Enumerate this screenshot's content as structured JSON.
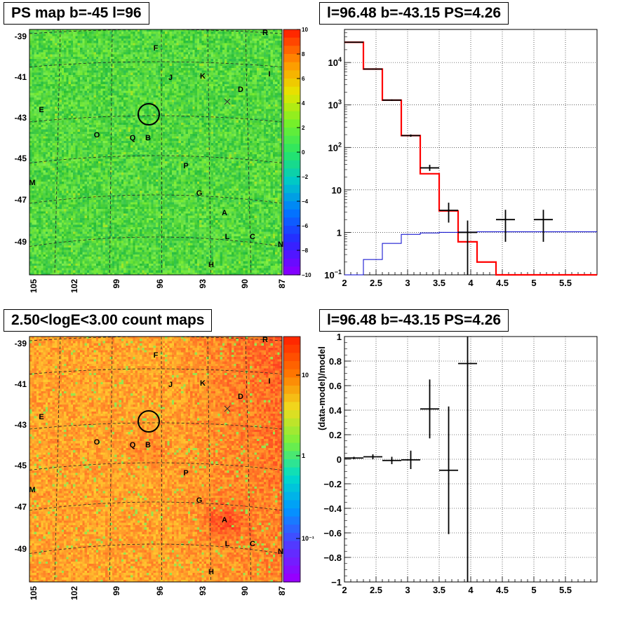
{
  "panels": [
    {
      "id": "ps-map",
      "title": "PS map b=-45 l=96",
      "colorscale": "green-ps",
      "colorbar": {
        "scale": "linear",
        "min": -10,
        "max": 10,
        "ticks": [
          "10",
          "8",
          "6",
          "4",
          "2",
          "0",
          "−2",
          "−4",
          "−6",
          "−8",
          "−10"
        ]
      },
      "yticks": [
        "-39",
        "-41",
        "-43",
        "-45",
        "-47",
        "-49"
      ],
      "xticks": [
        "105",
        "102",
        "99",
        "96",
        "93",
        "90",
        "87"
      ],
      "sources": [
        {
          "label": "R"
        },
        {
          "label": "F"
        },
        {
          "label": "J"
        },
        {
          "label": "K"
        },
        {
          "label": "I"
        },
        {
          "label": "D"
        },
        {
          "label": "E"
        },
        {
          "label": "O"
        },
        {
          "label": "Q"
        },
        {
          "label": "B"
        },
        {
          "label": "P"
        },
        {
          "label": "M"
        },
        {
          "label": "G"
        },
        {
          "label": "A"
        },
        {
          "label": "L"
        },
        {
          "label": "C"
        },
        {
          "label": "N"
        },
        {
          "label": "H"
        }
      ]
    },
    {
      "id": "count-map",
      "title": "2.50<logE<3.00 count maps",
      "colorscale": "warm-counts",
      "colorbar": {
        "scale": "log",
        "ticks": [
          "10",
          "1",
          "10⁻¹"
        ]
      },
      "yticks": [
        "-39",
        "-41",
        "-43",
        "-45",
        "-47",
        "-49"
      ],
      "xticks": [
        "105",
        "102",
        "99",
        "96",
        "93",
        "90",
        "87"
      ],
      "sources": [
        {
          "label": "R"
        },
        {
          "label": "F"
        },
        {
          "label": "J"
        },
        {
          "label": "K"
        },
        {
          "label": "I"
        },
        {
          "label": "D"
        },
        {
          "label": "E"
        },
        {
          "label": "O"
        },
        {
          "label": "Q"
        },
        {
          "label": "B"
        },
        {
          "label": "P"
        },
        {
          "label": "M"
        },
        {
          "label": "G"
        },
        {
          "label": "A"
        },
        {
          "label": "L"
        },
        {
          "label": "C"
        },
        {
          "label": "N"
        },
        {
          "label": "H"
        }
      ]
    }
  ],
  "chart_data": [
    {
      "type": "histogram",
      "title": "l=96.48 b=-43.15 PS=4.26",
      "xlabel": "",
      "ylabel": "",
      "xlim": [
        2,
        6
      ],
      "ylim": [
        0.1,
        60000
      ],
      "yscale": "log",
      "grid": true,
      "xticks": [
        "2",
        "2.5",
        "3",
        "3.5",
        "4",
        "4.5",
        "5",
        "5.5"
      ],
      "yticks": [
        {
          "v": 0.1,
          "label": "10",
          "sup": "−1"
        },
        {
          "v": 1,
          "label": "1"
        },
        {
          "v": 10,
          "label": "10"
        },
        {
          "v": 100,
          "label": "10",
          "sup": "2"
        },
        {
          "v": 1000,
          "label": "10",
          "sup": "3"
        },
        {
          "v": 10000,
          "label": "10",
          "sup": "4"
        }
      ],
      "series": [
        {
          "kind": "step",
          "color": "#ff0000",
          "edges": [
            2,
            2.3,
            2.6,
            2.9,
            3.2,
            3.5,
            3.8,
            4.1,
            4.4,
            6
          ],
          "values": [
            30000,
            7000,
            1300,
            190,
            24,
            3.2,
            0.6,
            0.2,
            0.1
          ]
        },
        {
          "kind": "step",
          "color": "#0000cc",
          "edges": [
            2,
            2.3,
            2.6,
            2.9,
            3.2,
            3.5,
            3.8,
            4.1,
            4.4,
            6
          ],
          "values": [
            0.1,
            0.23,
            0.55,
            0.9,
            0.97,
            1.0,
            1.02,
            1.03,
            1.03
          ]
        },
        {
          "kind": "errorbars",
          "color": "#000000",
          "points": [
            {
              "x": 2.15,
              "xerr": 0.15,
              "y": 30000,
              "ylo": 29500,
              "yhi": 30500
            },
            {
              "x": 2.45,
              "xerr": 0.15,
              "y": 7000,
              "ylo": 6800,
              "yhi": 7200
            },
            {
              "x": 2.75,
              "xerr": 0.15,
              "y": 1300,
              "ylo": 1250,
              "yhi": 1350
            },
            {
              "x": 3.05,
              "xerr": 0.15,
              "y": 190,
              "ylo": 178,
              "yhi": 202
            },
            {
              "x": 3.35,
              "xerr": 0.15,
              "y": 33,
              "ylo": 28,
              "yhi": 39
            },
            {
              "x": 3.65,
              "xerr": 0.15,
              "y": 3.3,
              "ylo": 1.7,
              "yhi": 5.0
            },
            {
              "x": 3.95,
              "xerr": 0.15,
              "y": 1.0,
              "ylo": 0.1,
              "yhi": 1.9
            },
            {
              "x": 4.55,
              "xerr": 0.15,
              "y": 2.0,
              "ylo": 0.6,
              "yhi": 3.4
            },
            {
              "x": 5.15,
              "xerr": 0.15,
              "y": 2.0,
              "ylo": 0.6,
              "yhi": 3.4
            }
          ]
        }
      ]
    },
    {
      "type": "errorbars",
      "title": "l=96.48 b=-43.15 PS=4.26",
      "xlabel": "",
      "ylabel": "(data-model)/model",
      "xlim": [
        2,
        6
      ],
      "ylim": [
        -1,
        1
      ],
      "yscale": "linear",
      "grid": true,
      "xticks": [
        "2",
        "2.5",
        "3",
        "3.5",
        "4",
        "4.5",
        "5",
        "5.5"
      ],
      "yticks": [
        {
          "v": 1,
          "label": "1"
        },
        {
          "v": 0.8,
          "label": "0.8"
        },
        {
          "v": 0.6,
          "label": "0.6"
        },
        {
          "v": 0.4,
          "label": "0.4"
        },
        {
          "v": 0.2,
          "label": "0.2"
        },
        {
          "v": 0,
          "label": "0"
        },
        {
          "v": -0.2,
          "label": "−0.2"
        },
        {
          "v": -0.4,
          "label": "−0.4"
        },
        {
          "v": -0.6,
          "label": "−0.6"
        },
        {
          "v": -0.8,
          "label": "−0.8"
        },
        {
          "v": -1,
          "label": "−1"
        }
      ],
      "series": [
        {
          "kind": "errorbars",
          "color": "#000000",
          "points": [
            {
              "x": 2.15,
              "xerr": 0.15,
              "y": 0.01,
              "ylo": 0.0,
              "yhi": 0.02
            },
            {
              "x": 2.45,
              "xerr": 0.15,
              "y": 0.02,
              "ylo": 0.0,
              "yhi": 0.04
            },
            {
              "x": 2.75,
              "xerr": 0.15,
              "y": -0.01,
              "ylo": -0.04,
              "yhi": 0.02
            },
            {
              "x": 3.05,
              "xerr": 0.15,
              "y": -0.005,
              "ylo": -0.08,
              "yhi": 0.07
            },
            {
              "x": 3.35,
              "xerr": 0.15,
              "y": 0.41,
              "ylo": 0.17,
              "yhi": 0.65
            },
            {
              "x": 3.65,
              "xerr": 0.15,
              "y": -0.09,
              "ylo": -0.61,
              "yhi": 0.43
            },
            {
              "x": 3.95,
              "xerr": 0.15,
              "y": 0.78,
              "ylo": -1.0,
              "yhi": 1.0
            }
          ]
        }
      ]
    }
  ]
}
